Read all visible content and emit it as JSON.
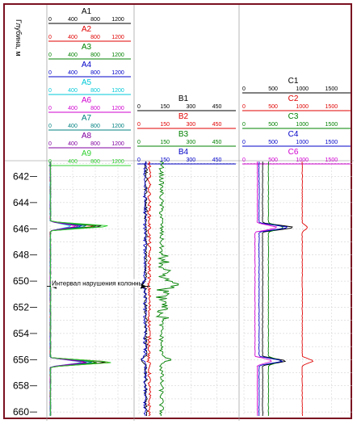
{
  "chart_data": {
    "type": "line",
    "depth_axis": {
      "label": "Глубина, м",
      "ticks": [
        642,
        644,
        646,
        648,
        650,
        652,
        654,
        656,
        658,
        660
      ],
      "range": [
        640.8,
        660.3
      ],
      "grid": true
    },
    "annotation": {
      "text": "Интервал нарушения колонны",
      "depth": 650.4
    },
    "tracks": [
      {
        "id": "A",
        "range": [
          0,
          1400
        ],
        "curves": [
          {
            "name": "A1",
            "color": "#000000",
            "ticks": [
              "0",
              "400",
              "800",
              "1200"
            ]
          },
          {
            "name": "A2",
            "color": "#e00000",
            "ticks": [
              "0",
              "400",
              "800",
              "1200"
            ]
          },
          {
            "name": "A3",
            "color": "#008000",
            "ticks": [
              "0",
              "400",
              "800",
              "1200"
            ]
          },
          {
            "name": "A4",
            "color": "#0000c8",
            "ticks": [
              "0",
              "400",
              "800",
              "1200"
            ]
          },
          {
            "name": "A5",
            "color": "#00c8d8",
            "ticks": [
              "0",
              "400",
              "800",
              "1200"
            ]
          },
          {
            "name": "A6",
            "color": "#d000d0",
            "ticks": [
              "0",
              "400",
              "800",
              "1200"
            ]
          },
          {
            "name": "A7",
            "color": "#008080",
            "ticks": [
              "0",
              "400",
              "800",
              "1200"
            ]
          },
          {
            "name": "A8",
            "color": "#8000a0",
            "ticks": [
              "0",
              "400",
              "800",
              "1200"
            ]
          },
          {
            "name": "A9",
            "color": "#30d030",
            "ticks": [
              "0",
              "400",
              "800",
              "1200"
            ]
          }
        ],
        "signature": {
          "base": [
            2,
            3,
            4,
            5,
            6,
            7,
            8,
            9,
            10
          ],
          "spikes": [
            {
              "depth": 645.8,
              "values": [
                1000,
                850,
                900,
                600,
                400,
                500,
                700,
                550,
                1120
              ]
            },
            {
              "depth": 656.2,
              "values": [
                1060,
                1150,
                900,
                700,
                600,
                650,
                800,
                700,
                1160
              ]
            }
          ]
        }
      },
      {
        "id": "B",
        "range": [
          0,
          550
        ],
        "curves": [
          {
            "name": "B1",
            "color": "#000000",
            "ticks": [
              "0",
              "150",
              "300",
              "450"
            ]
          },
          {
            "name": "B2",
            "color": "#e00000",
            "ticks": [
              "0",
              "150",
              "300",
              "450"
            ]
          },
          {
            "name": "B3",
            "color": "#008000",
            "ticks": [
              "0",
              "150",
              "300",
              "450"
            ]
          },
          {
            "name": "B4",
            "color": "#0000c8",
            "ticks": [
              "0",
              "150",
              "300",
              "450"
            ]
          }
        ],
        "signature": {
          "base": [
            40,
            60,
            130,
            35
          ],
          "spikes": [
            {
              "depth": 650.3,
              "values": [
                20,
                50,
                200,
                10
              ]
            },
            {
              "depth": 656.0,
              "values": [
                10,
                50,
                180,
                20
              ]
            }
          ]
        }
      },
      {
        "id": "C",
        "range": [
          0,
          1800
        ],
        "curves": [
          {
            "name": "C1",
            "color": "#000000",
            "ticks": [
              "0",
              "500",
              "1000",
              "1500"
            ]
          },
          {
            "name": "C2",
            "color": "#e00000",
            "ticks": [
              "0",
              "500",
              "1000",
              "1500"
            ]
          },
          {
            "name": "C3",
            "color": "#008000",
            "ticks": [
              "0",
              "500",
              "1000",
              "1500"
            ]
          },
          {
            "name": "C4",
            "color": "#0000c8",
            "ticks": [
              "0",
              "500",
              "1000",
              "1500"
            ]
          },
          {
            "name": "C6",
            "color": "#d000d0",
            "ticks": [
              "0",
              "500",
              "1000",
              "1500"
            ]
          }
        ],
        "signature": {
          "base": [
            320,
            1000,
            420,
            260,
            230
          ],
          "spikes": [
            {
              "depth": 645.9,
              "values": [
                900,
                1100,
                700,
                800,
                600
              ]
            },
            {
              "depth": 656.1,
              "values": [
                750,
                1200,
                650,
                700,
                500
              ]
            }
          ]
        }
      }
    ]
  }
}
